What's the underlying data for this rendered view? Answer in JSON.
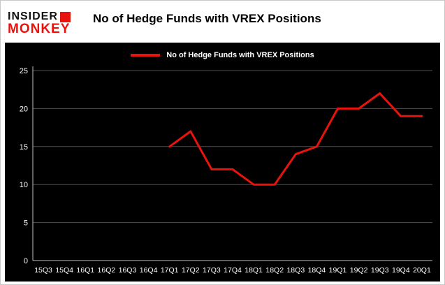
{
  "logo": {
    "line1": "INSIDER",
    "line2": "MONKEY"
  },
  "header": {
    "title": "No of Hedge Funds with VREX Positions"
  },
  "legend": {
    "label": "No of Hedge Funds with VREX Positions"
  },
  "colors": {
    "line": "#e8130c",
    "chart_bg": "#000000",
    "grid": "#4f4f4f",
    "axis": "#bfbfbf",
    "axis_text": "#ffffff",
    "logo_red": "#e8130c"
  },
  "chart_data": {
    "type": "line",
    "title": "No of Hedge Funds with VREX Positions",
    "categories": [
      "15Q3",
      "15Q4",
      "16Q1",
      "16Q2",
      "16Q3",
      "16Q4",
      "17Q1",
      "17Q2",
      "17Q3",
      "17Q4",
      "18Q1",
      "18Q2",
      "18Q3",
      "18Q4",
      "19Q1",
      "19Q2",
      "19Q3",
      "19Q4",
      "20Q1"
    ],
    "values": [
      null,
      null,
      null,
      null,
      null,
      null,
      15,
      17,
      12,
      12,
      10,
      10,
      14,
      15,
      20,
      20,
      22,
      19,
      19
    ],
    "xlabel": "",
    "ylabel": "",
    "ylim": [
      0,
      25
    ],
    "yticks": [
      0,
      5,
      10,
      15,
      20,
      25
    ],
    "grid": true,
    "legend_position": "top",
    "series_name": "No of Hedge Funds with VREX Positions"
  }
}
